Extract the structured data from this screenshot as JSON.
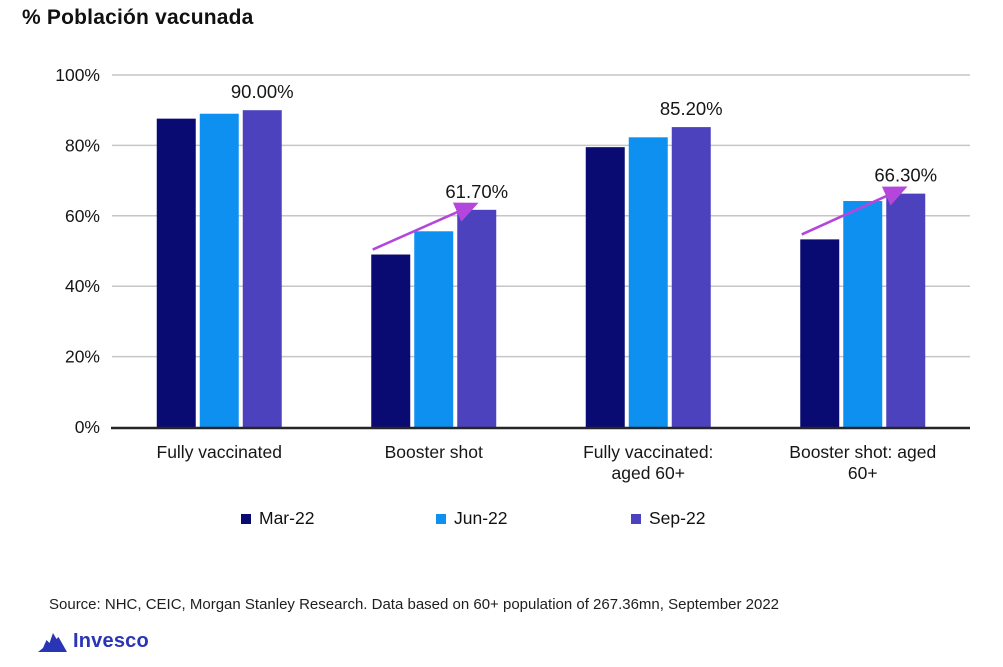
{
  "title": "% Población vacunada",
  "source": "Source: NHC, CEIC, Morgan Stanley Research. Data based on 60+ population of 267.36mn, September 2022",
  "logo": {
    "text": "Invesco"
  },
  "colors": {
    "navy": "#0a0a73",
    "azure": "#0e90f0",
    "violet": "#4c42be",
    "arrow": "#b446dc",
    "grid": "#c6c6c6",
    "axis": "#262626",
    "text": "#161616",
    "logo_blue": "#2a35b5"
  },
  "chart_data": {
    "type": "bar",
    "categories": [
      "Fully vaccinated",
      "Booster shot",
      "Fully vaccinated:\naged 60+",
      "Booster shot: aged\n60+"
    ],
    "series": [
      {
        "name": "Mar-22",
        "color": "#0a0a73",
        "values": [
          87.6,
          49.0,
          79.5,
          53.3
        ]
      },
      {
        "name": "Jun-22",
        "color": "#0e90f0",
        "values": [
          89.0,
          55.6,
          82.3,
          64.2
        ]
      },
      {
        "name": "Sep-22",
        "color": "#4c42be",
        "values": [
          90.0,
          61.7,
          85.2,
          66.3
        ]
      }
    ],
    "data_labels": [
      {
        "category_index": 0,
        "series_index": 2,
        "text": "90.00%"
      },
      {
        "category_index": 1,
        "series_index": 2,
        "text": "61.70%"
      },
      {
        "category_index": 2,
        "series_index": 2,
        "text": "85.20%"
      },
      {
        "category_index": 3,
        "series_index": 2,
        "text": "66.30%"
      }
    ],
    "arrows": [
      {
        "category_index": 1,
        "from_series": 0,
        "to_series": 2
      },
      {
        "category_index": 3,
        "from_series": 0,
        "to_series": 2
      }
    ],
    "ylim": [
      0,
      100
    ],
    "yticks": [
      "0%",
      "20%",
      "40%",
      "60%",
      "80%",
      "100%"
    ],
    "grid": true,
    "legend_position": "bottom"
  }
}
